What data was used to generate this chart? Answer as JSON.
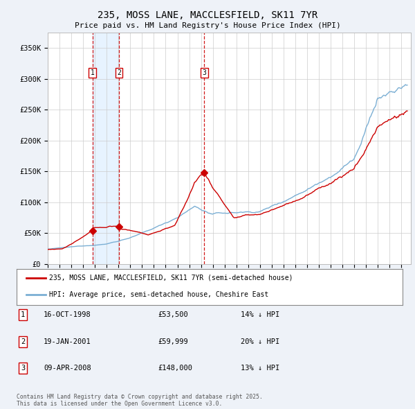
{
  "title": "235, MOSS LANE, MACCLESFIELD, SK11 7YR",
  "subtitle": "Price paid vs. HM Land Registry's House Price Index (HPI)",
  "ylabel_ticks": [
    "£0",
    "£50K",
    "£100K",
    "£150K",
    "£200K",
    "£250K",
    "£300K",
    "£350K"
  ],
  "ytick_values": [
    0,
    50000,
    100000,
    150000,
    200000,
    250000,
    300000,
    350000
  ],
  "ylim": [
    0,
    375000
  ],
  "xlim_start": 1995.0,
  "xlim_end": 2025.8,
  "hpi_color": "#7bafd4",
  "price_color": "#cc0000",
  "vline_color": "#cc0000",
  "shade_color": "#ddeeff",
  "purchase_dates": [
    1998.79,
    2001.05,
    2008.27
  ],
  "purchase_prices": [
    53500,
    59999,
    148000
  ],
  "purchase_labels": [
    "1",
    "2",
    "3"
  ],
  "legend_line1": "235, MOSS LANE, MACCLESFIELD, SK11 7YR (semi-detached house)",
  "legend_line2": "HPI: Average price, semi-detached house, Cheshire East",
  "table_rows": [
    [
      "1",
      "16-OCT-1998",
      "£53,500",
      "14% ↓ HPI"
    ],
    [
      "2",
      "19-JAN-2001",
      "£59,999",
      "20% ↓ HPI"
    ],
    [
      "3",
      "09-APR-2008",
      "£148,000",
      "13% ↓ HPI"
    ]
  ],
  "footer": "Contains HM Land Registry data © Crown copyright and database right 2025.\nThis data is licensed under the Open Government Licence v3.0.",
  "background_color": "#eef2f8",
  "plot_bg_color": "#ffffff"
}
